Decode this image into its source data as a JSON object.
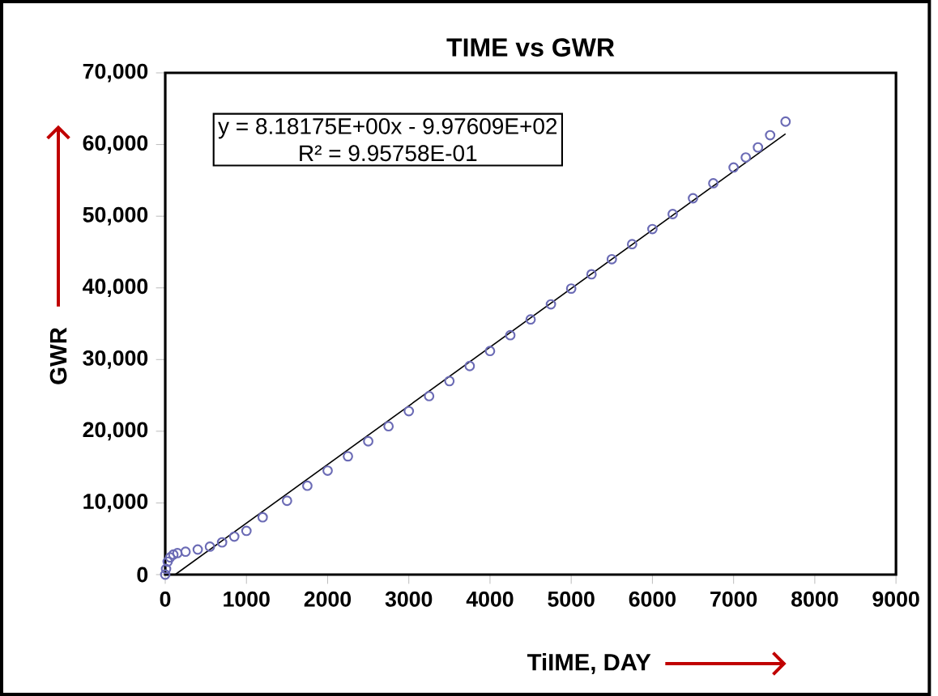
{
  "chart_data": {
    "type": "scatter",
    "title": "TIME  vs GWR",
    "xlabel": "TiIME, DAY",
    "ylabel": "GWR",
    "annotations": [
      "y = 8.18175E+00x - 9.97609E+02",
      "R² = 9.95758E-01"
    ],
    "xlim": [
      0,
      9000
    ],
    "xticks": [
      0,
      1000,
      2000,
      3000,
      4000,
      5000,
      6000,
      7000,
      8000,
      9000
    ],
    "ylim": [
      0,
      70000
    ],
    "yticks": [
      {
        "value": 0,
        "label": "0"
      },
      {
        "value": 10000,
        "label": "10,000"
      },
      {
        "value": 20000,
        "label": "20,000"
      },
      {
        "value": 30000,
        "label": "30,000"
      },
      {
        "value": 40000,
        "label": "40,000"
      },
      {
        "value": 50000,
        "label": "50,000"
      },
      {
        "value": 60000,
        "label": "60,000"
      },
      {
        "value": 70000,
        "label": "70,000"
      }
    ],
    "grid": false,
    "series": [
      {
        "color": "#6b6bb5",
        "marker": "circle",
        "x": [
          0,
          10,
          30,
          60,
          100,
          150,
          250,
          400,
          550,
          700,
          850,
          1000,
          1200,
          1500,
          1750,
          2000,
          2250,
          2500,
          2750,
          3000,
          3250,
          3500,
          3750,
          4000,
          4250,
          4500,
          4750,
          5000,
          5250,
          5500,
          5750,
          6000,
          6250,
          6500,
          6750,
          7000,
          7150,
          7300,
          7450,
          7640
        ],
        "values": [
          0,
          800,
          1800,
          2400,
          2800,
          3000,
          3200,
          3500,
          3900,
          4500,
          5300,
          6100,
          8000,
          10300,
          12400,
          14500,
          16500,
          18600,
          20700,
          22800,
          24900,
          27000,
          29100,
          31200,
          33400,
          35600,
          37700,
          39900,
          41900,
          44000,
          46100,
          48200,
          50300,
          52500,
          54600,
          56800,
          58200,
          59600,
          61300,
          63200
        ]
      },
      {
        "type": "line",
        "color": "#000000",
        "marker": "none",
        "line_style": "solid",
        "x": [
          122,
          7640
        ],
        "values": [
          0,
          61500
        ]
      }
    ]
  }
}
